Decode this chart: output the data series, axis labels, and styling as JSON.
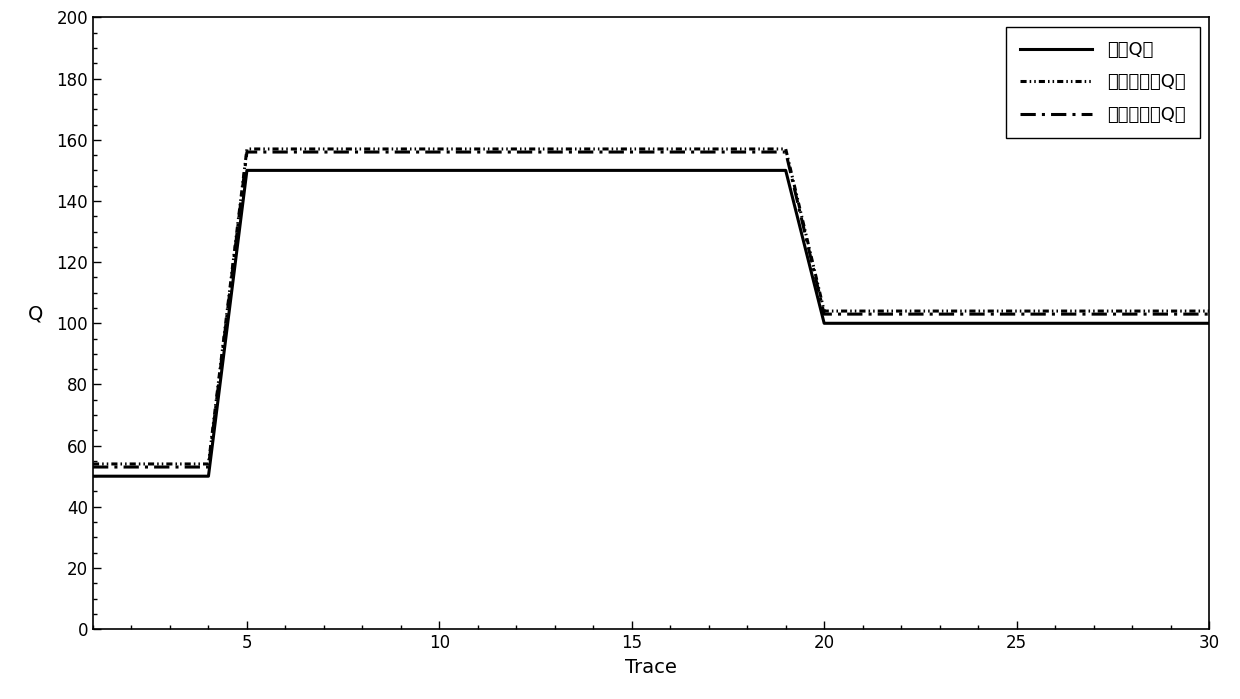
{
  "title": "",
  "xlabel": "Trace",
  "ylabel": "Q",
  "xlim": [
    1,
    30
  ],
  "ylim": [
    0,
    200
  ],
  "xticks": [
    5,
    10,
    15,
    20,
    25,
    30
  ],
  "yticks": [
    0,
    20,
    40,
    60,
    80,
    100,
    120,
    140,
    160,
    180,
    200
  ],
  "legend_labels": [
    "理诎Q値",
    "谱比法计算Q値",
    "本技术计算Q値"
  ],
  "theo_x": [
    1,
    4,
    4,
    5,
    5,
    19,
    19,
    20,
    20,
    30
  ],
  "theo_y": [
    50,
    50,
    50,
    150,
    150,
    150,
    150,
    100,
    100,
    100
  ],
  "spec_x": [
    1,
    4,
    4,
    5,
    5,
    19,
    19,
    20,
    20,
    30
  ],
  "spec_y": [
    54,
    54,
    54,
    157,
    157,
    157,
    157,
    104,
    104,
    104
  ],
  "tech_x": [
    1,
    4,
    4,
    5,
    5,
    19,
    19,
    20,
    20,
    30
  ],
  "tech_y": [
    53,
    53,
    53,
    156,
    156,
    156,
    156,
    103,
    103,
    103
  ],
  "line_color": "#000000",
  "background_color": "#ffffff",
  "fig_width": 12.4,
  "fig_height": 6.99,
  "dpi": 100
}
